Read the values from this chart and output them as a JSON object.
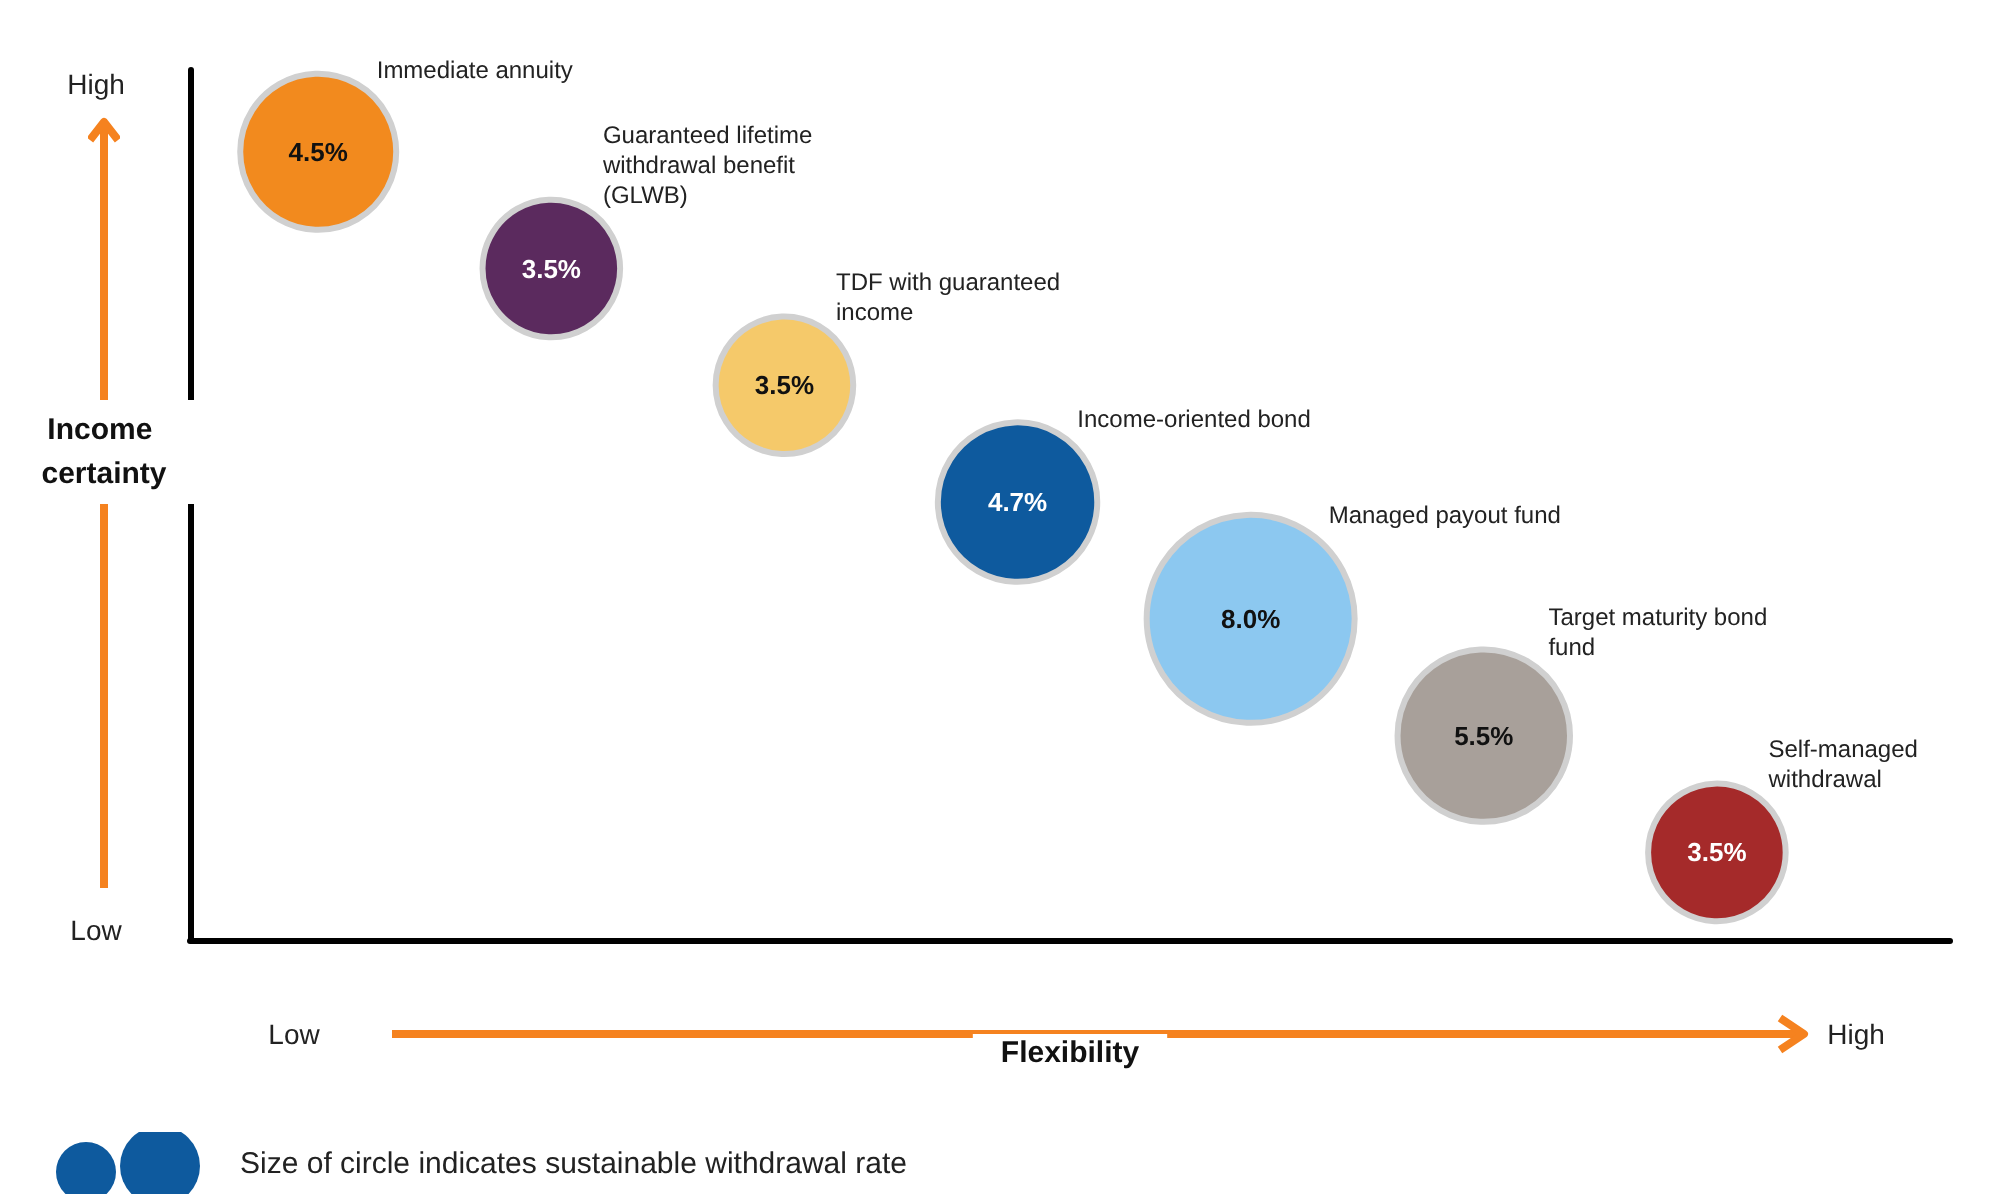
{
  "chart_data": {
    "type": "other",
    "xlabel": "Flexibility",
    "ylabel": "Income certainty",
    "annotations": [
      "Low",
      "High",
      "Low",
      "High",
      "Size of circle indicates sustainable withdrawal rate"
    ],
    "categories": [
      "Immediate annuity",
      "Guaranteed lifetime withdrawal benefit (GLWB)",
      "TDF with guaranteed income",
      "Income-oriented bond",
      "Managed payout fund",
      "Target maturity bond fund",
      "Self-managed withdrawal"
    ],
    "values": [
      4.5,
      3.5,
      3.5,
      4.7,
      8.0,
      5.5,
      3.5
    ],
    "value_labels": [
      "4.5%",
      "3.5%",
      "3.5%",
      "4.7%",
      "8.0%",
      "5.5%",
      "3.5%"
    ],
    "colors": [
      "#f28a1e",
      "#5b2a5e",
      "#f5c96a",
      "#0e5a9e",
      "#8cc8f0",
      "#a8a09a",
      "#a52a2a"
    ]
  }
}
